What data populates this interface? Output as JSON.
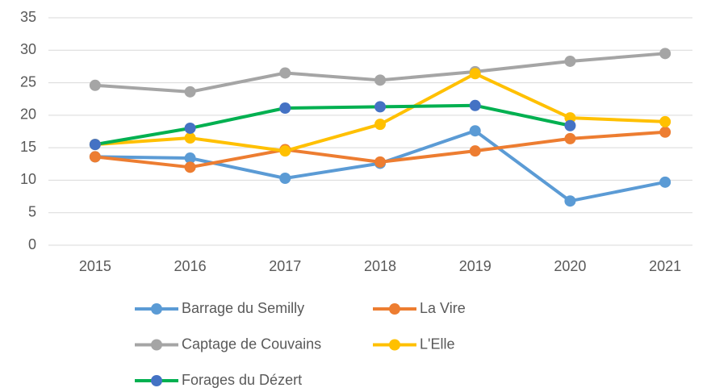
{
  "chart_data": {
    "type": "line",
    "categories": [
      "2015",
      "2016",
      "2017",
      "2018",
      "2019",
      "2020",
      "2021"
    ],
    "series": [
      {
        "name": "Barrage du Semilly",
        "color": "#5b9bd5",
        "values": [
          13.6,
          13.4,
          10.3,
          12.6,
          17.6,
          6.8,
          9.7
        ]
      },
      {
        "name": "La Vire",
        "color": "#ed7d31",
        "values": [
          13.6,
          12.0,
          14.7,
          12.8,
          14.5,
          16.4,
          17.4
        ]
      },
      {
        "name": "Captage de Couvains",
        "color": "#a5a5a5",
        "values": [
          24.6,
          23.6,
          26.5,
          25.4,
          26.7,
          28.3,
          29.5
        ]
      },
      {
        "name": "L'Elle",
        "color": "#ffc000",
        "values": [
          15.5,
          16.5,
          14.5,
          18.6,
          26.4,
          19.6,
          19.0
        ]
      },
      {
        "name": "Forages du Dézert",
        "color": "#00b050",
        "marker_color": "#4472c4",
        "values": [
          15.5,
          18.0,
          21.1,
          21.3,
          21.5,
          18.4,
          null
        ]
      }
    ],
    "ylim": [
      0,
      35
    ],
    "yticks": [
      0,
      5,
      10,
      15,
      20,
      25,
      30,
      35
    ],
    "grid": true
  }
}
